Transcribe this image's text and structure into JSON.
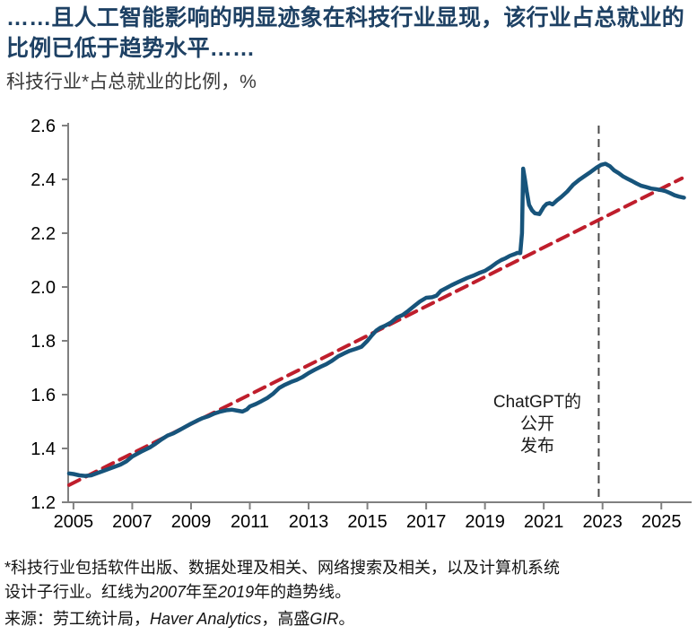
{
  "header": {
    "title": "……且人工智能影响的明显迹象在科技行业显现，该行业占总就业的比例已低于趋势水平……",
    "subtitle": "科技行业*占总就业的比例，%"
  },
  "chart_data": {
    "type": "line",
    "title": "……且人工智能影响的明显迹象在科技行业显现，该行业占总就业的比例已低于趋势水平……",
    "ylabel": "科技行业*占总就业的比例，%",
    "xlabel": "",
    "grid": false,
    "legend": "none",
    "xlim": [
      2004.82,
      2026.0
    ],
    "ylim": [
      1.2,
      2.6
    ],
    "axis_color": "#808080",
    "xticks": [
      {
        "v": 2005,
        "label": "2005"
      },
      {
        "v": 2007,
        "label": "2007"
      },
      {
        "v": 2009,
        "label": "2009"
      },
      {
        "v": 2011,
        "label": "2011"
      },
      {
        "v": 2013,
        "label": "2013"
      },
      {
        "v": 2015,
        "label": "2015"
      },
      {
        "v": 2017,
        "label": "2017"
      },
      {
        "v": 2019,
        "label": "2019"
      },
      {
        "v": 2021,
        "label": "2021"
      },
      {
        "v": 2023,
        "label": "2023"
      },
      {
        "v": 2025,
        "label": "2025"
      }
    ],
    "yticks": [
      {
        "v": 1.2,
        "label": "1.2"
      },
      {
        "v": 1.4,
        "label": "1.4"
      },
      {
        "v": 1.6,
        "label": "1.6"
      },
      {
        "v": 1.8,
        "label": "1.8"
      },
      {
        "v": 2.0,
        "label": "2.0"
      },
      {
        "v": 2.2,
        "label": "2.2"
      },
      {
        "v": 2.4,
        "label": "2.4"
      },
      {
        "v": 2.6,
        "label": "2.6"
      }
    ],
    "vline": {
      "x_year": 2022.87,
      "color": "#4a4a4a",
      "dash": [
        9,
        6
      ],
      "width": 2
    },
    "annotation": {
      "lines": [
        "ChatGPT的",
        "公开",
        "发布"
      ],
      "x_year": 2020.78,
      "y_value": 1.553,
      "line_gap": 24.5
    },
    "series": [
      {
        "id": "trend-line",
        "name": "趋势线（2007年至2019年）",
        "color": "#bf1e2c",
        "width": 4,
        "dash": [
          13,
          8
        ],
        "points": [
          [
            2004.85,
            1.264
          ],
          [
            2025.7,
            2.404
          ]
        ]
      },
      {
        "id": "tech-share-line",
        "name": "科技行业占总就业的比例",
        "color": "#17547b",
        "width": 4.5,
        "dash": null,
        "points": [
          [
            2004.85,
            1.307
          ],
          [
            2005.0,
            1.305
          ],
          [
            2005.2,
            1.3
          ],
          [
            2005.4,
            1.298
          ],
          [
            2005.6,
            1.3
          ],
          [
            2005.8,
            1.308
          ],
          [
            2006.0,
            1.316
          ],
          [
            2006.3,
            1.328
          ],
          [
            2006.6,
            1.34
          ],
          [
            2006.8,
            1.352
          ],
          [
            2007.0,
            1.37
          ],
          [
            2007.3,
            1.388
          ],
          [
            2007.6,
            1.404
          ],
          [
            2007.8,
            1.418
          ],
          [
            2008.0,
            1.434
          ],
          [
            2008.2,
            1.448
          ],
          [
            2008.4,
            1.456
          ],
          [
            2008.6,
            1.468
          ],
          [
            2008.8,
            1.48
          ],
          [
            2009.0,
            1.492
          ],
          [
            2009.2,
            1.503
          ],
          [
            2009.4,
            1.513
          ],
          [
            2009.6,
            1.52
          ],
          [
            2009.8,
            1.53
          ],
          [
            2010.0,
            1.537
          ],
          [
            2010.2,
            1.542
          ],
          [
            2010.4,
            1.544
          ],
          [
            2010.6,
            1.54
          ],
          [
            2010.75,
            1.537
          ],
          [
            2010.9,
            1.545
          ],
          [
            2011.0,
            1.556
          ],
          [
            2011.2,
            1.565
          ],
          [
            2011.4,
            1.576
          ],
          [
            2011.6,
            1.588
          ],
          [
            2011.8,
            1.604
          ],
          [
            2012.0,
            1.625
          ],
          [
            2012.2,
            1.637
          ],
          [
            2012.4,
            1.647
          ],
          [
            2012.6,
            1.655
          ],
          [
            2012.8,
            1.666
          ],
          [
            2013.0,
            1.68
          ],
          [
            2013.2,
            1.692
          ],
          [
            2013.4,
            1.703
          ],
          [
            2013.6,
            1.713
          ],
          [
            2013.8,
            1.726
          ],
          [
            2014.0,
            1.742
          ],
          [
            2014.2,
            1.753
          ],
          [
            2014.4,
            1.763
          ],
          [
            2014.6,
            1.77
          ],
          [
            2014.8,
            1.778
          ],
          [
            2015.0,
            1.8
          ],
          [
            2015.15,
            1.82
          ],
          [
            2015.3,
            1.838
          ],
          [
            2015.45,
            1.849
          ],
          [
            2015.6,
            1.856
          ],
          [
            2015.8,
            1.868
          ],
          [
            2016.0,
            1.886
          ],
          [
            2016.2,
            1.896
          ],
          [
            2016.4,
            1.912
          ],
          [
            2016.6,
            1.93
          ],
          [
            2016.8,
            1.947
          ],
          [
            2017.0,
            1.96
          ],
          [
            2017.2,
            1.962
          ],
          [
            2017.35,
            1.968
          ],
          [
            2017.5,
            1.986
          ],
          [
            2017.7,
            1.997
          ],
          [
            2017.85,
            2.006
          ],
          [
            2018.0,
            2.014
          ],
          [
            2018.2,
            2.024
          ],
          [
            2018.4,
            2.034
          ],
          [
            2018.6,
            2.042
          ],
          [
            2018.8,
            2.052
          ],
          [
            2019.0,
            2.06
          ],
          [
            2019.2,
            2.074
          ],
          [
            2019.4,
            2.09
          ],
          [
            2019.55,
            2.1
          ],
          [
            2019.7,
            2.107
          ],
          [
            2019.85,
            2.116
          ],
          [
            2020.0,
            2.122
          ],
          [
            2020.1,
            2.127
          ],
          [
            2020.2,
            2.126
          ],
          [
            2020.26,
            2.2
          ],
          [
            2020.3,
            2.44
          ],
          [
            2020.36,
            2.4
          ],
          [
            2020.42,
            2.355
          ],
          [
            2020.5,
            2.305
          ],
          [
            2020.6,
            2.285
          ],
          [
            2020.7,
            2.274
          ],
          [
            2020.85,
            2.271
          ],
          [
            2021.0,
            2.298
          ],
          [
            2021.1,
            2.309
          ],
          [
            2021.2,
            2.312
          ],
          [
            2021.3,
            2.307
          ],
          [
            2021.45,
            2.322
          ],
          [
            2021.6,
            2.335
          ],
          [
            2021.8,
            2.355
          ],
          [
            2022.0,
            2.38
          ],
          [
            2022.2,
            2.398
          ],
          [
            2022.4,
            2.413
          ],
          [
            2022.6,
            2.428
          ],
          [
            2022.8,
            2.444
          ],
          [
            2022.95,
            2.454
          ],
          [
            2023.1,
            2.458
          ],
          [
            2023.25,
            2.449
          ],
          [
            2023.4,
            2.433
          ],
          [
            2023.55,
            2.423
          ],
          [
            2023.7,
            2.411
          ],
          [
            2023.85,
            2.402
          ],
          [
            2024.0,
            2.394
          ],
          [
            2024.15,
            2.385
          ],
          [
            2024.3,
            2.377
          ],
          [
            2024.5,
            2.371
          ],
          [
            2024.65,
            2.366
          ],
          [
            2024.8,
            2.364
          ],
          [
            2025.0,
            2.36
          ],
          [
            2025.15,
            2.356
          ],
          [
            2025.3,
            2.349
          ],
          [
            2025.45,
            2.341
          ],
          [
            2025.6,
            2.336
          ],
          [
            2025.77,
            2.332
          ]
        ]
      }
    ]
  },
  "footnotes": {
    "line1": "*科技行业包括软件出版、数据处理及相关、网络搜索及相关，以及计算机系统",
    "line2_parts": [
      {
        "t": "设计子行业。红线为",
        "i": false
      },
      {
        "t": "2007",
        "i": true
      },
      {
        "t": "年至",
        "i": false
      },
      {
        "t": "2019",
        "i": true
      },
      {
        "t": "年的趋势线。",
        "i": false
      }
    ],
    "source_parts": [
      {
        "t": "来源：劳工统计局，",
        "i": false
      },
      {
        "t": "Haver Analytics",
        "i": true
      },
      {
        "t": "，高盛",
        "i": false
      },
      {
        "t": "GIR",
        "i": true
      },
      {
        "t": "。",
        "i": false
      }
    ]
  }
}
